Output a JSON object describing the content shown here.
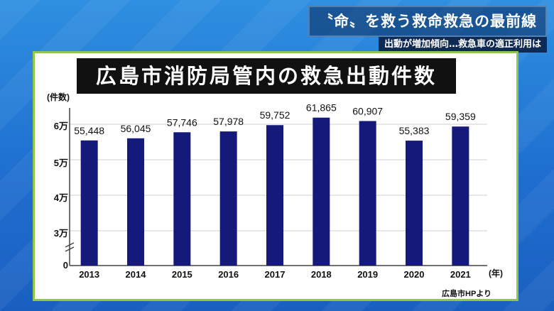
{
  "header": {
    "headline": "〝命〟を救う救命救急の最前線",
    "subline": "出動が増加傾向…救急車の適正利用は"
  },
  "chart_data": {
    "type": "bar",
    "title": "広島市消防局管内の救急出動件数",
    "ylabel": "(件数)",
    "xlabel": "(年)",
    "y_tick_labels": [
      "0",
      "3万",
      "4万",
      "5万",
      "6万"
    ],
    "categories": [
      "2013",
      "2014",
      "2015",
      "2016",
      "2017",
      "2018",
      "2019",
      "2020",
      "2021"
    ],
    "values": [
      55448,
      56045,
      57746,
      57978,
      59752,
      61865,
      60907,
      55383,
      59359
    ],
    "value_labels": [
      "55,448",
      "56,045",
      "57,746",
      "57,978",
      "59,752",
      "61,865",
      "60,907",
      "55,383",
      "59,359"
    ],
    "bar_color": "#14197a",
    "grid": true,
    "legend": "none",
    "source": "広島市HPより"
  }
}
